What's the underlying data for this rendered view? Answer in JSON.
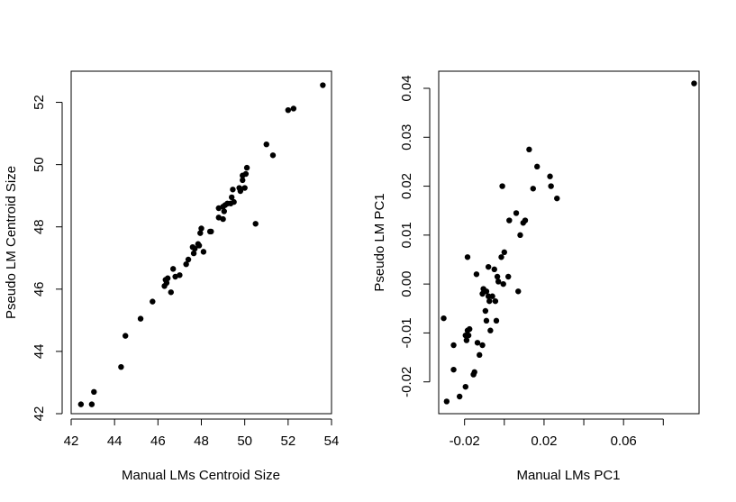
{
  "chart_data": [
    {
      "type": "scatter",
      "title": "",
      "xlabel": "Manual LMs Centroid Size",
      "ylabel": "Pseudo LM Centroid Size",
      "xlim": [
        42,
        54
      ],
      "ylim": [
        42,
        53
      ],
      "xticks": [
        "42",
        "44",
        "46",
        "48",
        "50",
        "52",
        "54"
      ],
      "yticks": [
        "42",
        "44",
        "46",
        "48",
        "50",
        "52"
      ],
      "points": [
        [
          42.45,
          42.3
        ],
        [
          42.95,
          42.3
        ],
        [
          43.05,
          42.7
        ],
        [
          44.3,
          43.5
        ],
        [
          44.5,
          44.5
        ],
        [
          45.2,
          45.05
        ],
        [
          45.75,
          45.6
        ],
        [
          46.3,
          46.1
        ],
        [
          46.35,
          46.3
        ],
        [
          46.4,
          46.2
        ],
        [
          46.45,
          46.35
        ],
        [
          46.6,
          45.9
        ],
        [
          46.7,
          46.65
        ],
        [
          46.8,
          46.4
        ],
        [
          47.0,
          46.45
        ],
        [
          47.3,
          46.8
        ],
        [
          47.4,
          46.95
        ],
        [
          47.6,
          47.35
        ],
        [
          47.65,
          47.15
        ],
        [
          47.7,
          47.3
        ],
        [
          47.85,
          47.45
        ],
        [
          47.9,
          47.4
        ],
        [
          47.95,
          47.8
        ],
        [
          48.0,
          47.95
        ],
        [
          48.1,
          47.2
        ],
        [
          48.4,
          47.85
        ],
        [
          48.45,
          47.85
        ],
        [
          48.8,
          48.6
        ],
        [
          48.8,
          48.3
        ],
        [
          49.0,
          48.65
        ],
        [
          49.0,
          48.25
        ],
        [
          49.05,
          48.5
        ],
        [
          49.1,
          48.7
        ],
        [
          49.2,
          48.75
        ],
        [
          49.35,
          48.75
        ],
        [
          49.4,
          48.95
        ],
        [
          49.45,
          49.2
        ],
        [
          49.5,
          48.8
        ],
        [
          49.75,
          49.25
        ],
        [
          49.8,
          49.15
        ],
        [
          49.9,
          49.5
        ],
        [
          49.9,
          49.65
        ],
        [
          50.0,
          49.25
        ],
        [
          50.05,
          49.7
        ],
        [
          50.1,
          49.9
        ],
        [
          50.5,
          48.1
        ],
        [
          51.0,
          50.65
        ],
        [
          51.3,
          50.3
        ],
        [
          52.0,
          51.75
        ],
        [
          52.25,
          51.8
        ],
        [
          53.6,
          52.55
        ]
      ],
      "grid": false,
      "legend": "none"
    },
    {
      "type": "scatter",
      "title": "",
      "xlabel": "Manual LMs PC1",
      "ylabel": "Pseudo LM PC1",
      "xlim": [
        -0.033,
        0.098
      ],
      "ylim": [
        -0.0265,
        0.0435
      ],
      "xticks": [
        "-0.02",
        "0.02",
        "0.06"
      ],
      "xtick_values": [
        -0.02,
        0.0,
        0.02,
        0.04,
        0.06,
        0.08
      ],
      "yticks": [
        "-0.02",
        "-0.01",
        "0.00",
        "0.01",
        "0.02",
        "0.03",
        "0.04"
      ],
      "points": [
        [
          -0.0305,
          -0.007
        ],
        [
          -0.029,
          -0.024
        ],
        [
          -0.0255,
          -0.0175
        ],
        [
          -0.0255,
          -0.0125
        ],
        [
          -0.0225,
          -0.023
        ],
        [
          -0.0195,
          -0.021
        ],
        [
          -0.0195,
          -0.0105
        ],
        [
          -0.019,
          -0.0115
        ],
        [
          -0.0185,
          0.0055
        ],
        [
          -0.0185,
          -0.0095
        ],
        [
          -0.018,
          -0.0105
        ],
        [
          -0.0175,
          -0.0092
        ],
        [
          -0.0155,
          -0.0185
        ],
        [
          -0.015,
          -0.018
        ],
        [
          -0.014,
          0.002
        ],
        [
          -0.0135,
          -0.012
        ],
        [
          -0.0125,
          -0.0145
        ],
        [
          -0.011,
          -0.0125
        ],
        [
          -0.011,
          -0.002
        ],
        [
          -0.0105,
          -0.001
        ],
        [
          -0.0095,
          -0.0055
        ],
        [
          -0.009,
          -0.0015
        ],
        [
          -0.009,
          -0.0075
        ],
        [
          -0.008,
          0.0035
        ],
        [
          -0.008,
          -0.0025
        ],
        [
          -0.0075,
          -0.0035
        ],
        [
          -0.007,
          -0.0095
        ],
        [
          -0.006,
          -0.0025
        ],
        [
          -0.005,
          0.003
        ],
        [
          -0.0045,
          -0.0035
        ],
        [
          -0.004,
          -0.0075
        ],
        [
          -0.0035,
          0.0015
        ],
        [
          -0.003,
          0.0005
        ],
        [
          -0.0015,
          0.0055
        ],
        [
          -0.001,
          0.02
        ],
        [
          -0.0005,
          0.0
        ],
        [
          0.0,
          0.0065
        ],
        [
          0.002,
          0.0015
        ],
        [
          0.0025,
          0.013
        ],
        [
          0.006,
          0.0145
        ],
        [
          0.007,
          -0.0015
        ],
        [
          0.008,
          0.01
        ],
        [
          0.0095,
          0.0125
        ],
        [
          0.0105,
          0.013
        ],
        [
          0.0125,
          0.0275
        ],
        [
          0.0145,
          0.0195
        ],
        [
          0.0165,
          0.024
        ],
        [
          0.023,
          0.022
        ],
        [
          0.0235,
          0.02
        ],
        [
          0.0265,
          0.0175
        ],
        [
          0.0955,
          0.041
        ]
      ],
      "grid": false,
      "legend": "none"
    }
  ],
  "colors": {
    "points": "#000000",
    "axes": "#000000",
    "background": "#ffffff"
  }
}
